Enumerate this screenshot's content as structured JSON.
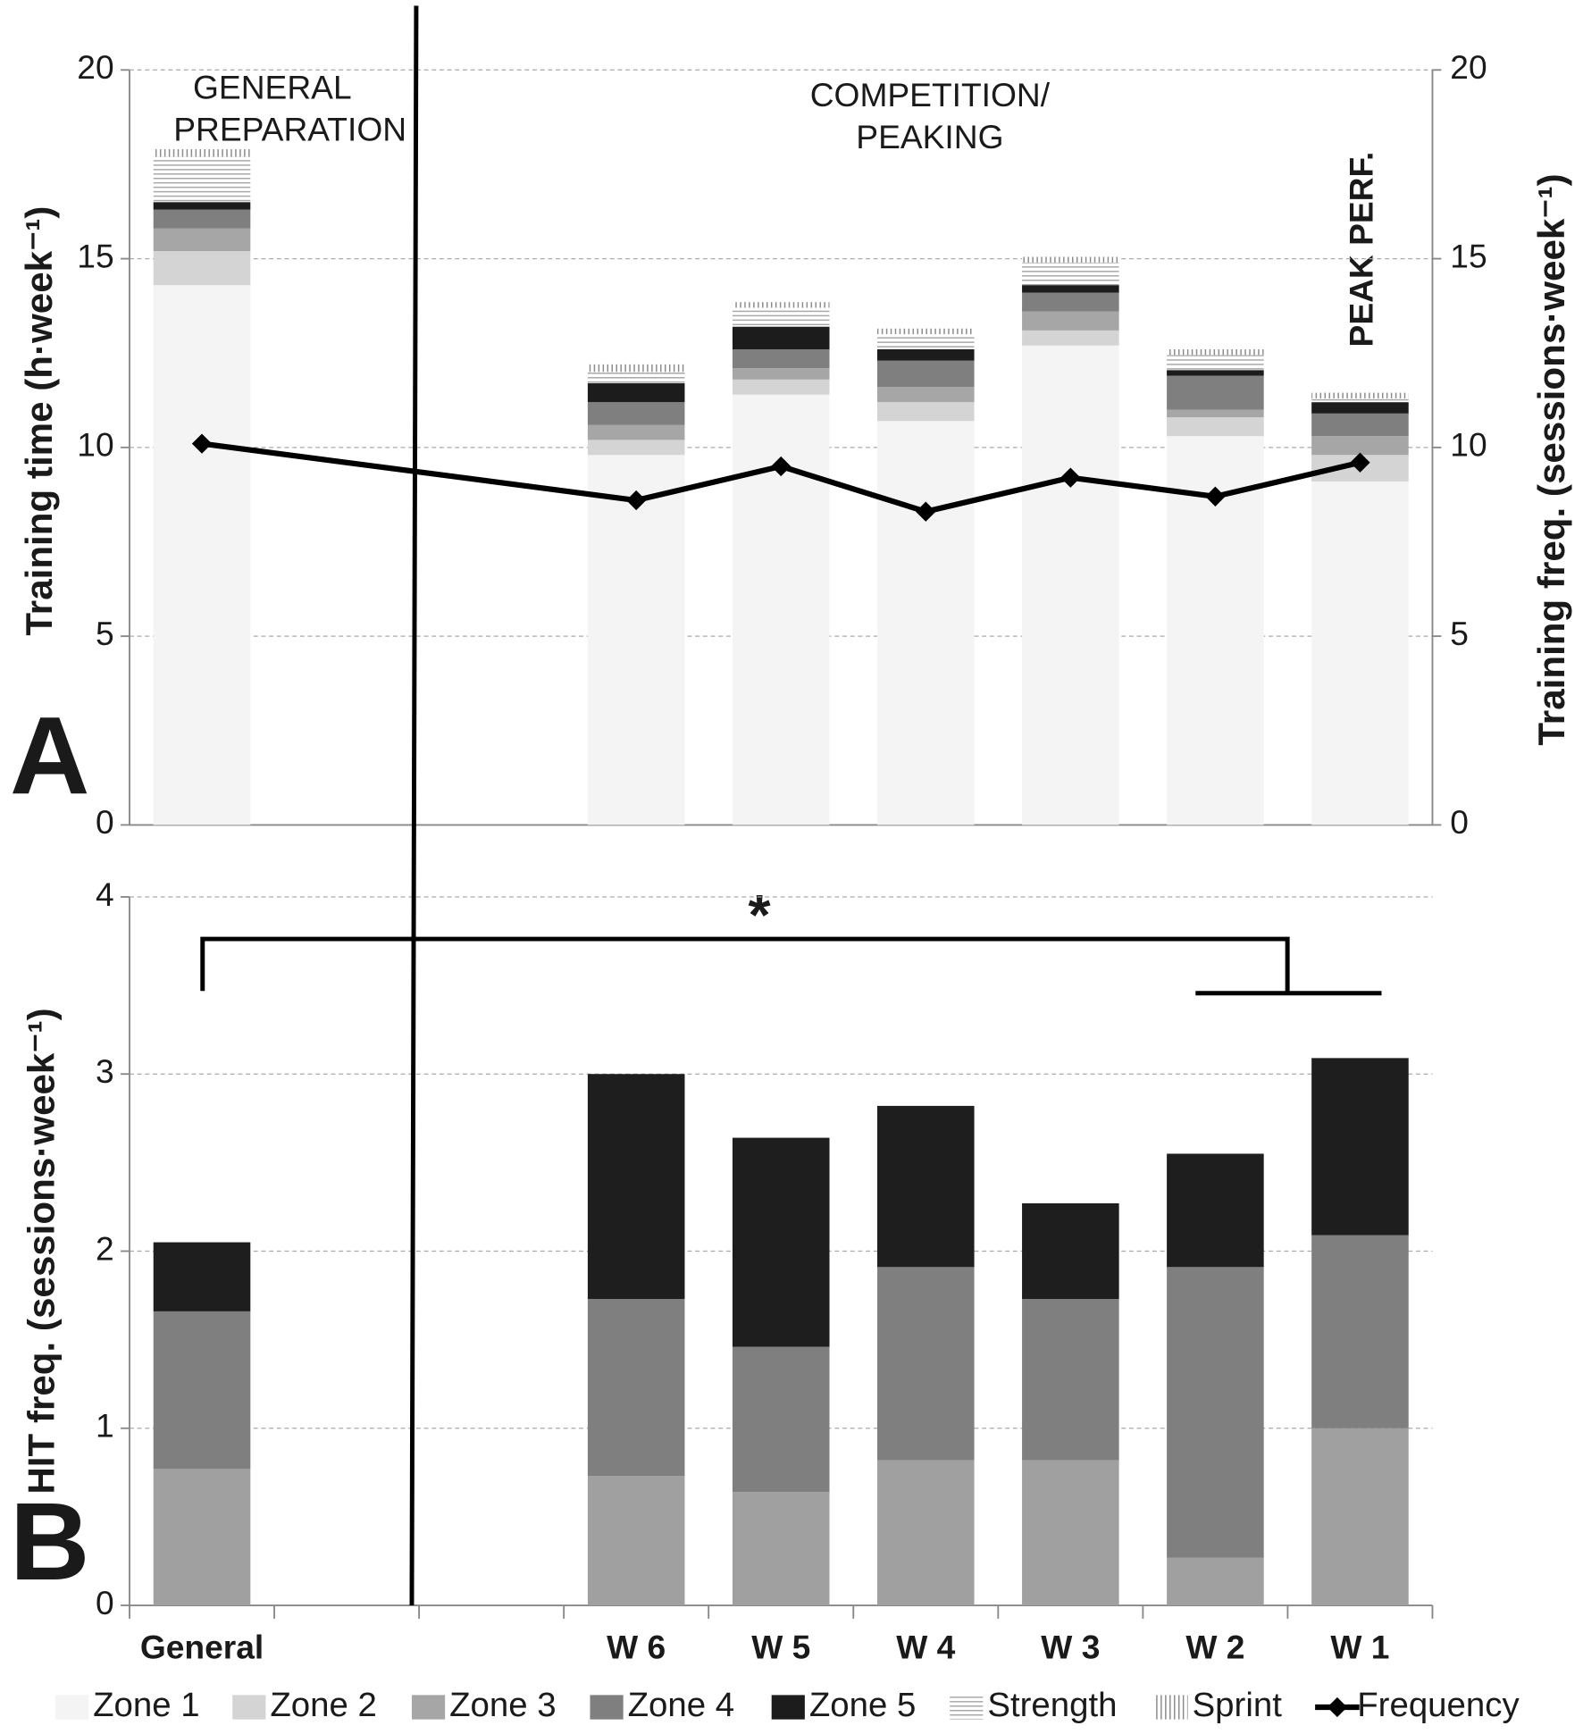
{
  "chart_data": [
    {
      "type": "bar",
      "stacked": true,
      "panel_label": "A",
      "y_label": "Training time (h·week⁻¹)",
      "y2_label": "Training freq. (sessions·week⁻¹)",
      "annotations": [
        "GENERAL",
        "PREPARATION",
        "COMPETITION/",
        "PEAKING",
        "PEAK PERF."
      ],
      "ylim": [
        0,
        20
      ],
      "yticks": [
        0,
        5,
        10,
        15,
        20
      ],
      "y2lim": [
        0,
        20
      ],
      "y2ticks": [
        0,
        5,
        10,
        15,
        20
      ],
      "grid": true,
      "legend": "bottom",
      "series": [
        {
          "name": "Zone 1",
          "color": "#f4f4f4",
          "values": [
            14.3,
            null,
            null,
            9.8,
            11.4,
            10.7,
            12.7,
            10.3,
            9.1
          ]
        },
        {
          "name": "Zone 2",
          "color": "#d4d4d4",
          "values": [
            0.9,
            null,
            null,
            0.4,
            0.4,
            0.5,
            0.4,
            0.5,
            0.7
          ]
        },
        {
          "name": "Zone 3",
          "color": "#a6a6a6",
          "values": [
            0.6,
            null,
            null,
            0.4,
            0.3,
            0.4,
            0.5,
            0.2,
            0.5
          ]
        },
        {
          "name": "Zone 4",
          "color": "#7f7f7f",
          "values": [
            0.5,
            null,
            null,
            0.6,
            0.5,
            0.7,
            0.5,
            0.9,
            0.6
          ]
        },
        {
          "name": "Zone 5",
          "color": "#1c1c1c",
          "values": [
            0.2,
            null,
            null,
            0.5,
            0.6,
            0.3,
            0.2,
            0.15,
            0.3
          ]
        },
        {
          "name": "Strength",
          "color": "#a8a8a8",
          "hatch": "horizontal",
          "values": [
            1.2,
            null,
            null,
            0.3,
            0.5,
            0.4,
            0.6,
            0.4,
            0.1
          ]
        },
        {
          "name": "Sprint",
          "color": "#8c8c8c",
          "hatch": "vertical",
          "values": [
            0.2,
            null,
            null,
            0.2,
            0.15,
            0.15,
            0.15,
            0.15,
            0.15
          ]
        },
        {
          "name": "Frequency",
          "type": "line",
          "axis": "y2",
          "color": "#000000",
          "marker": "diamond",
          "span_gaps": true,
          "values": [
            10.1,
            null,
            null,
            8.6,
            9.5,
            8.3,
            9.2,
            8.7,
            9.6
          ]
        }
      ]
    },
    {
      "type": "bar",
      "stacked": true,
      "panel_label": "B",
      "y_label": "HIT freq. (sessions·week⁻¹)",
      "annotations": [
        "*"
      ],
      "categories": [
        "General",
        null,
        null,
        "W 6",
        "W 5",
        "W 4",
        "W 3",
        "W 2",
        "W 1"
      ],
      "ylim": [
        0,
        4
      ],
      "yticks": [
        0,
        1,
        2,
        3,
        4
      ],
      "grid": true,
      "series": [
        {
          "name": "Zone 3",
          "color": "#a0a0a0",
          "values": [
            0.77,
            null,
            null,
            0.73,
            0.64,
            0.82,
            0.82,
            0.27,
            1.0
          ]
        },
        {
          "name": "Zone 4",
          "color": "#7f7f7f",
          "values": [
            0.89,
            null,
            null,
            1.0,
            0.82,
            1.09,
            0.91,
            1.64,
            1.09
          ]
        },
        {
          "name": "Zone 5",
          "color": "#1e1e1e",
          "values": [
            0.39,
            null,
            null,
            1.27,
            1.18,
            0.91,
            0.54,
            0.64,
            1.0
          ]
        }
      ]
    }
  ]
}
